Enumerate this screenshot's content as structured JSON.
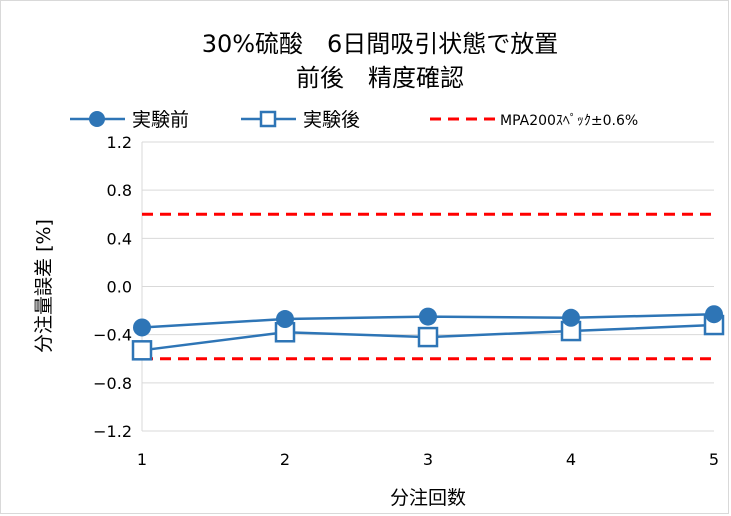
{
  "chart_data": {
    "type": "line",
    "title_line1": "30%硫酸　6日間吸引状態で放置",
    "title_line2": "前後　精度確認",
    "xlabel": "分注回数",
    "ylabel": "分注量誤差 [%]",
    "x": [
      1,
      2,
      3,
      4,
      5
    ],
    "ylim": [
      -1.2,
      1.2
    ],
    "yticks": [
      "1.2",
      "0.8",
      "0.4",
      "0.0",
      "−0.4",
      "−0.8",
      "−1.2"
    ],
    "ytick_values": [
      1.2,
      0.8,
      0.4,
      0.0,
      -0.4,
      -0.8,
      -1.2
    ],
    "xticks": [
      "1",
      "2",
      "3",
      "4",
      "5"
    ],
    "grid": true,
    "legend_position": "top",
    "series": [
      {
        "name": "実験前",
        "values": [
          -0.34,
          -0.27,
          -0.25,
          -0.26,
          -0.23
        ],
        "color": "#2e75b6",
        "marker": "filled-circle"
      },
      {
        "name": "実験後",
        "values": [
          -0.53,
          -0.38,
          -0.42,
          -0.37,
          -0.32
        ],
        "color": "#2e75b6",
        "marker": "open-square"
      },
      {
        "name": "MPA200ｽﾍﾟｯｸ±0.6%",
        "upper": 0.6,
        "lower": -0.6,
        "color": "#ff0000",
        "style": "dashed"
      }
    ]
  }
}
